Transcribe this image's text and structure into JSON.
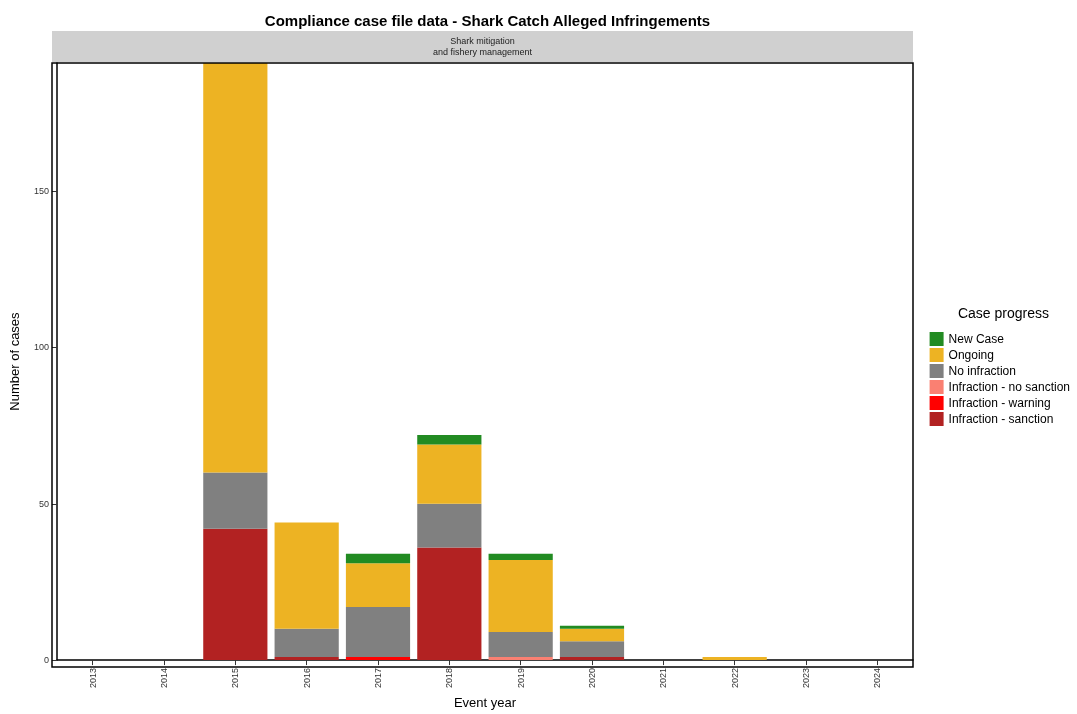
{
  "chart_data": {
    "type": "bar",
    "title": "Compliance case file data - Shark Catch Alleged Infringements",
    "subtitle": "Shark mitigation\nand fishery management",
    "xlabel": "Event year",
    "ylabel": "Number of cases",
    "legend_title": "Case progress",
    "categories": [
      "2013",
      "2014",
      "2015",
      "2016",
      "2017",
      "2018",
      "2019",
      "2020",
      "2021",
      "2022",
      "2023",
      "2024"
    ],
    "stacked": true,
    "ylim": [
      0,
      191
    ],
    "yticks": [
      0,
      50,
      100,
      150
    ],
    "grid": false,
    "legend": "right",
    "series": [
      {
        "name": "Infraction - sanction",
        "color": "#b22222",
        "values": [
          null,
          null,
          42,
          1,
          null,
          36,
          null,
          1,
          null,
          null,
          null,
          null
        ]
      },
      {
        "name": "Infraction - warning",
        "color": "#ff0000",
        "values": [
          null,
          null,
          null,
          null,
          1,
          null,
          null,
          null,
          null,
          null,
          null,
          null
        ]
      },
      {
        "name": "Infraction - no sanction",
        "color": "#fa8072",
        "values": [
          null,
          null,
          null,
          null,
          null,
          null,
          1,
          null,
          null,
          null,
          null,
          null
        ]
      },
      {
        "name": "No infraction",
        "color": "#808080",
        "values": [
          null,
          null,
          18,
          9,
          16,
          14,
          8,
          5,
          null,
          null,
          null,
          null
        ]
      },
      {
        "name": "Ongoing",
        "color": "#edb323",
        "values": [
          null,
          null,
          131,
          34,
          14,
          19,
          23,
          4,
          null,
          1,
          null,
          null
        ]
      },
      {
        "name": "New Case",
        "color": "#228b22",
        "values": [
          null,
          null,
          null,
          null,
          3,
          3,
          2,
          1,
          null,
          null,
          null,
          null
        ]
      }
    ]
  }
}
